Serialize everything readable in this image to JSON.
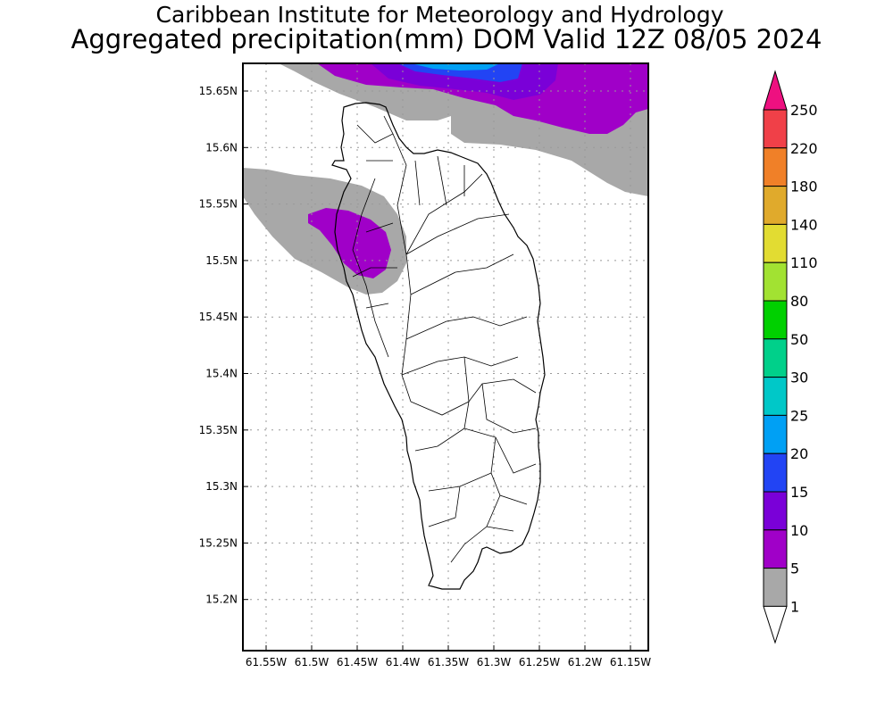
{
  "title": {
    "line1": "Caribbean Institute for Meteorology and Hydrology",
    "line2": "Aggregated precipitation(mm) DOM Valid 12Z 08/05 2024"
  },
  "map": {
    "lat_ticks": [
      "15.65N",
      "15.6N",
      "15.55N",
      "15.5N",
      "15.45N",
      "15.4N",
      "15.35N",
      "15.3N",
      "15.25N",
      "15.2N"
    ],
    "lon_ticks": [
      "61.55W",
      "61.5W",
      "61.45W",
      "61.4W",
      "61.35W",
      "61.3W",
      "61.25W",
      "61.2W",
      "61.15W"
    ]
  },
  "colorbar": {
    "labels": [
      "250",
      "220",
      "180",
      "140",
      "110",
      "80",
      "50",
      "30",
      "25",
      "20",
      "15",
      "10",
      "5",
      "1"
    ],
    "colors": [
      "#f04048",
      "#f08028",
      "#e0aa2c",
      "#e2dc32",
      "#a2e232",
      "#00d000",
      "#00d08a",
      "#00c8c8",
      "#00a0f4",
      "#2244f4",
      "#7a00d8",
      "#a000c8",
      "#a8a8a8"
    ],
    "over_color": "#ee1080",
    "under_color": "#ffffff"
  }
}
